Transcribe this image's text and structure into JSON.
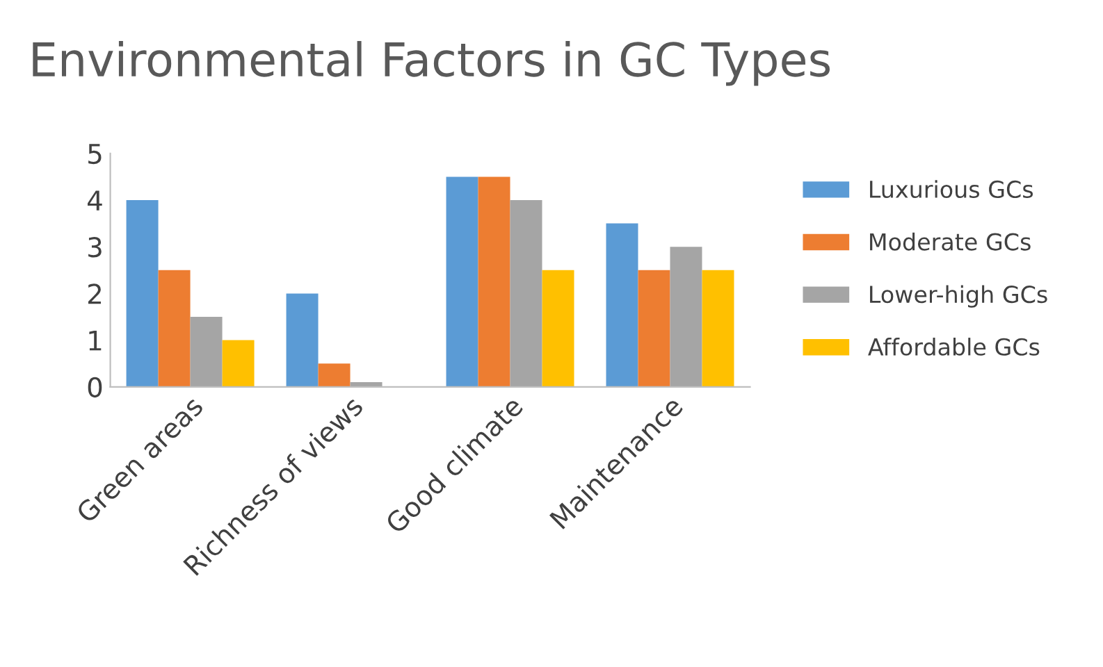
{
  "chart_data": {
    "type": "bar",
    "title": "Environmental Factors in GC Types",
    "categories": [
      "Green areas",
      "Richness of views",
      "Good climate",
      "Maintenance"
    ],
    "series": [
      {
        "name": "Luxurious GCs",
        "color": "#5b9bd5",
        "values": [
          4,
          2,
          4.5,
          3.5
        ]
      },
      {
        "name": "Moderate GCs",
        "color": "#ed7d31",
        "values": [
          2.5,
          0.5,
          4.5,
          2.5
        ]
      },
      {
        "name": "Lower-high GCs",
        "color": "#a5a5a5",
        "values": [
          1.5,
          0.1,
          4,
          3
        ]
      },
      {
        "name": "Affordable GCs",
        "color": "#ffc000",
        "values": [
          1,
          0,
          2.5,
          2.5
        ]
      }
    ],
    "ylim": [
      0,
      5
    ],
    "yticks": [
      0,
      1,
      2,
      3,
      4,
      5
    ],
    "grid": false,
    "legend": "right"
  }
}
